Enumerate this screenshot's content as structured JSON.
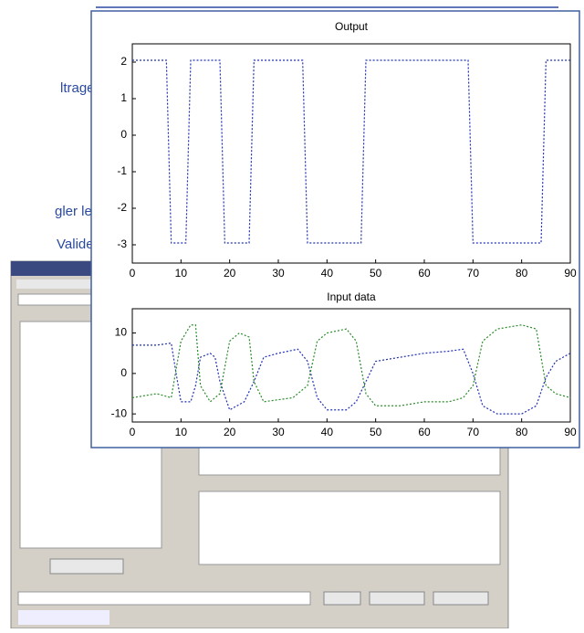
{
  "slide_text": [
    "ltrage",
    "gler le",
    "Valider"
  ],
  "chart_data": [
    {
      "type": "line",
      "title": "Output",
      "xlim": [
        0,
        90
      ],
      "ylim": [
        -3.5,
        2.5
      ],
      "xticks": [
        0,
        10,
        20,
        30,
        40,
        50,
        60,
        70,
        80,
        90
      ],
      "yticks": [
        -3,
        -2,
        -1,
        0,
        1,
        2
      ],
      "series": [
        {
          "color": "#2030b0",
          "x": [
            0,
            7,
            8,
            11,
            12,
            18,
            19,
            24,
            25,
            35,
            36,
            47,
            48,
            69,
            70,
            84,
            85,
            90
          ],
          "values": [
            2.05,
            2.05,
            -2.95,
            -2.95,
            2.05,
            2.05,
            -2.95,
            -2.95,
            2.05,
            2.05,
            -2.95,
            -2.95,
            2.05,
            2.05,
            -2.95,
            -2.95,
            2.05,
            2.05
          ]
        }
      ]
    },
    {
      "type": "line",
      "title": "Input data",
      "xlim": [
        0,
        90
      ],
      "ylim": [
        -12,
        16
      ],
      "xticks": [
        0,
        10,
        20,
        30,
        40,
        50,
        60,
        70,
        80,
        90
      ],
      "yticks": [
        -10,
        0,
        10
      ],
      "series": [
        {
          "color": "#2030b0",
          "x": [
            0,
            5,
            8,
            9,
            10,
            12,
            13,
            14,
            16,
            17,
            18,
            20,
            23,
            25,
            27,
            30,
            34,
            36,
            38,
            40,
            44,
            46,
            48,
            50,
            55,
            60,
            65,
            68,
            70,
            72,
            75,
            80,
            83,
            85,
            87,
            90
          ],
          "values": [
            7,
            7,
            7.5,
            0,
            -7,
            -7,
            -3,
            4,
            5,
            4,
            -2,
            -9,
            -7,
            -2,
            4,
            5,
            6,
            3,
            -6,
            -9,
            -9,
            -7,
            -2,
            3,
            4,
            5,
            5.5,
            6,
            0,
            -8,
            -10,
            -10,
            -8,
            -1,
            3,
            5
          ]
        },
        {
          "color": "#2a8a2a",
          "x": [
            0,
            5,
            8,
            10,
            12,
            13,
            14,
            16,
            18,
            20,
            22,
            24,
            25,
            27,
            33,
            36,
            38,
            40,
            44,
            46,
            48,
            50,
            55,
            60,
            65,
            68,
            70,
            72,
            75,
            80,
            83,
            85,
            87,
            90
          ],
          "values": [
            -6,
            -5,
            -6,
            8,
            12,
            12,
            -3,
            -7,
            -5,
            8,
            10,
            9,
            -2,
            -7,
            -6,
            -3,
            8,
            10,
            11,
            8,
            -5,
            -8,
            -8,
            -7,
            -7,
            -6,
            -3,
            8,
            11,
            12,
            11,
            -3,
            -5,
            -6
          ]
        }
      ]
    }
  ]
}
